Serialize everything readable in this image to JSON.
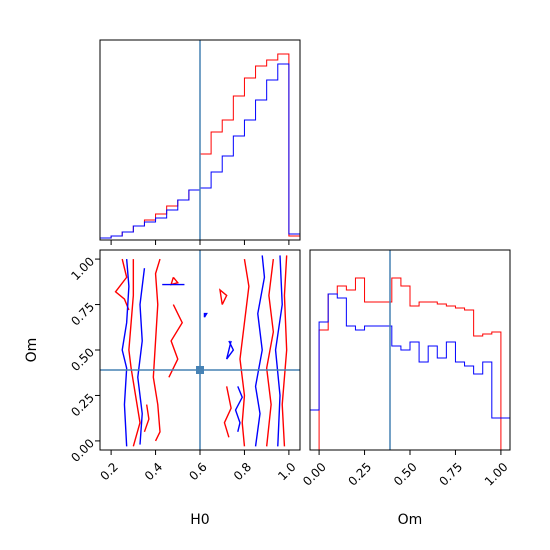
{
  "chart_data": {
    "type": "corner",
    "parameters": [
      "H0",
      "Om"
    ],
    "truth": {
      "H0": 0.6,
      "Om": 0.39
    },
    "colors": {
      "red": "#ff0000",
      "blue": "#0000ff",
      "truth": "#4682b4"
    },
    "panels": [
      {
        "id": "H0-marginal",
        "type": "histogram",
        "xlim": [
          0.15,
          1.05
        ],
        "ylim": [
          0,
          1.0
        ],
        "x_ticks": [
          0.2,
          0.4,
          0.6,
          0.8,
          1.0
        ],
        "edges": [
          0.15,
          0.2,
          0.25,
          0.3,
          0.35,
          0.4,
          0.45,
          0.5,
          0.55,
          0.6,
          0.65,
          0.7,
          0.75,
          0.8,
          0.85,
          0.9,
          0.95,
          1.0,
          1.05
        ],
        "series": [
          {
            "color": "red",
            "values": [
              0.01,
              0.02,
              0.04,
              0.07,
              0.1,
              0.13,
              0.17,
              0.2,
              0.25,
              0.43,
              0.54,
              0.6,
              0.72,
              0.81,
              0.87,
              0.9,
              0.93,
              0.02
            ]
          },
          {
            "color": "blue",
            "values": [
              0.01,
              0.02,
              0.04,
              0.07,
              0.09,
              0.11,
              0.15,
              0.2,
              0.25,
              0.26,
              0.34,
              0.42,
              0.52,
              0.6,
              0.7,
              0.8,
              0.88,
              0.03
            ]
          }
        ]
      },
      {
        "id": "H0-Om-contour",
        "type": "contour",
        "xlim": [
          0.15,
          1.05
        ],
        "ylim": [
          -0.05,
          1.05
        ],
        "x_ticks": [
          0.2,
          0.4,
          0.6,
          0.8,
          1.0
        ],
        "y_ticks": [
          0.0,
          0.25,
          0.5,
          0.75,
          1.0
        ],
        "x_tick_labels": [
          "0.2",
          "0.4",
          "0.6",
          "0.8",
          "1.0"
        ],
        "y_tick_labels": [
          "0.00",
          "0.25",
          "0.50",
          "0.75",
          "1.00"
        ],
        "xlabel": "H0",
        "ylabel": "Om",
        "contours": [
          {
            "color": "red",
            "points": [
              [
                0.3,
                -0.03
              ],
              [
                0.33,
                0.1
              ],
              [
                0.31,
                0.25
              ],
              [
                0.29,
                0.4
              ],
              [
                0.28,
                0.5
              ],
              [
                0.29,
                0.65
              ],
              [
                0.3,
                0.8
              ],
              [
                0.3,
                1.0
              ]
            ]
          },
          {
            "color": "red",
            "points": [
              [
                0.4,
                0.0
              ],
              [
                0.42,
                0.05
              ],
              [
                0.41,
                0.2
              ],
              [
                0.39,
                0.35
              ],
              [
                0.4,
                0.55
              ],
              [
                0.41,
                0.75
              ],
              [
                0.4,
                0.92
              ],
              [
                0.42,
                1.0
              ]
            ]
          },
          {
            "color": "red",
            "points": [
              [
                0.25,
                1.0
              ],
              [
                0.27,
                0.9
              ],
              [
                0.22,
                0.82
              ],
              [
                0.26,
                0.78
              ],
              [
                0.28,
                0.72
              ]
            ]
          },
          {
            "color": "red",
            "points": [
              [
                0.48,
                0.75
              ],
              [
                0.52,
                0.65
              ],
              [
                0.47,
                0.55
              ],
              [
                0.5,
                0.45
              ],
              [
                0.46,
                0.35
              ]
            ]
          },
          {
            "color": "red",
            "points": [
              [
                0.36,
                0.2
              ],
              [
                0.37,
                0.12
              ],
              [
                0.35,
                0.05
              ]
            ]
          },
          {
            "color": "red",
            "points": [
              [
                0.48,
                0.9
              ],
              [
                0.5,
                0.87
              ],
              [
                0.47,
                0.86
              ],
              [
                0.48,
                0.9
              ]
            ]
          },
          {
            "color": "red",
            "points": [
              [
                0.8,
                -0.03
              ],
              [
                0.79,
                0.1
              ],
              [
                0.8,
                0.25
              ],
              [
                0.78,
                0.45
              ],
              [
                0.8,
                0.65
              ],
              [
                0.82,
                0.85
              ],
              [
                0.8,
                1.0
              ]
            ]
          },
          {
            "color": "red",
            "points": [
              [
                0.9,
                -0.03
              ],
              [
                0.92,
                0.2
              ],
              [
                0.9,
                0.4
              ],
              [
                0.93,
                0.6
              ],
              [
                0.91,
                0.8
              ],
              [
                0.93,
                1.0
              ]
            ]
          },
          {
            "color": "red",
            "points": [
              [
                0.98,
                -0.03
              ],
              [
                0.97,
                0.2
              ],
              [
                0.99,
                0.5
              ],
              [
                0.98,
                0.8
              ],
              [
                0.99,
                1.02
              ]
            ]
          },
          {
            "color": "red",
            "points": [
              [
                0.7,
                0.75
              ],
              [
                0.72,
                0.8
              ],
              [
                0.69,
                0.83
              ],
              [
                0.7,
                0.75
              ]
            ]
          },
          {
            "color": "red",
            "points": [
              [
                0.72,
                0.3
              ],
              [
                0.74,
                0.18
              ],
              [
                0.71,
                0.1
              ],
              [
                0.73,
                0.02
              ]
            ]
          },
          {
            "color": "blue",
            "points": [
              [
                0.27,
                -0.03
              ],
              [
                0.26,
                0.2
              ],
              [
                0.27,
                0.4
              ],
              [
                0.25,
                0.5
              ],
              [
                0.27,
                0.65
              ],
              [
                0.28,
                0.85
              ],
              [
                0.27,
                1.0
              ]
            ]
          },
          {
            "color": "blue",
            "points": [
              [
                0.33,
                -0.02
              ],
              [
                0.34,
                0.15
              ],
              [
                0.32,
                0.35
              ],
              [
                0.34,
                0.55
              ],
              [
                0.33,
                0.75
              ],
              [
                0.35,
                0.95
              ]
            ]
          },
          {
            "color": "blue",
            "points": [
              [
                0.43,
                0.86
              ],
              [
                0.53,
                0.86
              ]
            ]
          },
          {
            "color": "blue",
            "points": [
              [
                0.62,
                0.68
              ],
              [
                0.63,
                0.7
              ],
              [
                0.62,
                0.7
              ],
              [
                0.62,
                0.68
              ]
            ]
          },
          {
            "color": "blue",
            "points": [
              [
                0.85,
                -0.03
              ],
              [
                0.87,
                0.15
              ],
              [
                0.85,
                0.3
              ],
              [
                0.88,
                0.5
              ],
              [
                0.86,
                0.7
              ],
              [
                0.89,
                0.9
              ],
              [
                0.88,
                1.02
              ]
            ]
          },
          {
            "color": "blue",
            "points": [
              [
                0.95,
                -0.03
              ],
              [
                0.96,
                0.25
              ],
              [
                0.94,
                0.5
              ],
              [
                0.97,
                0.75
              ],
              [
                0.96,
                1.02
              ]
            ]
          },
          {
            "color": "blue",
            "points": [
              [
                0.77,
                0.3
              ],
              [
                0.79,
                0.24
              ],
              [
                0.76,
                0.17
              ],
              [
                0.78,
                0.1
              ],
              [
                0.77,
                0.05
              ]
            ]
          },
          {
            "color": "blue",
            "points": [
              [
                0.73,
                0.55
              ],
              [
                0.75,
                0.5
              ],
              [
                0.72,
                0.45
              ],
              [
                0.74,
                0.55
              ]
            ]
          }
        ]
      },
      {
        "id": "Om-marginal",
        "type": "histogram",
        "xlim": [
          -0.05,
          1.05
        ],
        "ylim": [
          0,
          1.0
        ],
        "x_ticks": [
          0.0,
          0.25,
          0.5,
          0.75,
          1.0
        ],
        "x_tick_labels": [
          "0.00",
          "0.25",
          "0.50",
          "0.75",
          "1.00"
        ],
        "xlabel": "Om",
        "edges": [
          -0.05,
          0.0,
          0.05,
          0.1,
          0.15,
          0.2,
          0.25,
          0.3,
          0.35,
          0.4,
          0.45,
          0.5,
          0.55,
          0.6,
          0.65,
          0.7,
          0.75,
          0.8,
          0.85,
          0.9,
          0.95,
          1.0,
          1.05
        ],
        "series": [
          {
            "color": "red",
            "values": [
              0.0,
              0.6,
              0.78,
              0.82,
              0.8,
              0.86,
              0.74,
              0.74,
              0.74,
              0.86,
              0.82,
              0.72,
              0.74,
              0.74,
              0.73,
              0.72,
              0.71,
              0.7,
              0.57,
              0.58,
              0.59,
              0.0
            ]
          },
          {
            "color": "blue",
            "values": [
              0.2,
              0.64,
              0.78,
              0.76,
              0.62,
              0.6,
              0.62,
              0.62,
              0.62,
              0.52,
              0.5,
              0.54,
              0.44,
              0.52,
              0.46,
              0.54,
              0.44,
              0.42,
              0.38,
              0.44,
              0.16,
              0.16
            ]
          }
        ]
      }
    ]
  }
}
